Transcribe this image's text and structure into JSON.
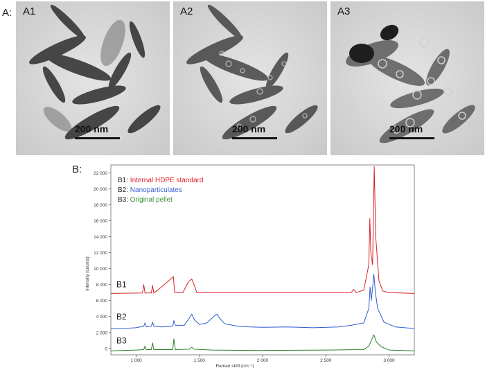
{
  "panel_a_label": "A:",
  "panel_b_label": "B:",
  "micrographs": [
    {
      "label": "A1",
      "scale": "200 nm"
    },
    {
      "label": "A2",
      "scale": "200 nm"
    },
    {
      "label": "A3",
      "scale": "200 nm"
    }
  ],
  "chart_data": {
    "type": "line",
    "xlabel": "Raman shift (cm⁻¹)",
    "ylabel": "Intensity (counts)",
    "xlim": [
      800,
      3200
    ],
    "ylim": [
      -800,
      23000
    ],
    "x_ticks": [
      1000,
      1500,
      2000,
      2500,
      3000
    ],
    "x_tick_labels": [
      "1 000",
      "1 500",
      "2 000",
      "2 500",
      "3 000"
    ],
    "y_ticks": [
      0,
      2000,
      4000,
      6000,
      8000,
      10000,
      12000,
      14000,
      16000,
      18000,
      20000,
      22000
    ],
    "y_tick_labels": [
      "0",
      "2 000",
      "4 000",
      "6 000",
      "8 000",
      "10 000",
      "12 000",
      "14 000",
      "16 000",
      "18 000",
      "20 000",
      "22 000"
    ],
    "grid": false,
    "legend_position": "top-left",
    "legend": [
      {
        "prefix": "B1:",
        "name": "Internal HDPE standard",
        "color": "#e0202a"
      },
      {
        "prefix": "B2:",
        "name": "Nanoparticulates",
        "color": "#3a5fd0"
      },
      {
        "prefix": "B3:",
        "name": "Original pellet",
        "color": "#3f8f3a"
      }
    ],
    "series": [
      {
        "name": "B1",
        "color": "#d71f26",
        "x": [
          800,
          1050,
          1060,
          1070,
          1120,
          1130,
          1140,
          1170,
          1295,
          1300,
          1305,
          1370,
          1415,
          1440,
          1460,
          1480,
          2000,
          2700,
          2720,
          2740,
          2800,
          2840,
          2848,
          2856,
          2870,
          2883,
          2895,
          2920,
          2950,
          3000,
          3200
        ],
        "y": [
          6900,
          6950,
          8000,
          6950,
          6950,
          7900,
          6950,
          7300,
          9000,
          7800,
          7000,
          7000,
          8400,
          8700,
          7900,
          7000,
          7000,
          7000,
          7400,
          7000,
          7300,
          10500,
          16300,
          12000,
          10500,
          22800,
          14000,
          8500,
          7200,
          7000,
          6900
        ]
      },
      {
        "name": "B2",
        "color": "#2f5bd1",
        "x": [
          800,
          900,
          1000,
          1060,
          1070,
          1080,
          1120,
          1130,
          1140,
          1200,
          1290,
          1298,
          1310,
          1380,
          1420,
          1440,
          1460,
          1500,
          1560,
          1620,
          1640,
          1660,
          1700,
          1800,
          1900,
          2000,
          2200,
          2400,
          2600,
          2700,
          2800,
          2840,
          2850,
          2860,
          2880,
          2892,
          2910,
          2960,
          3050,
          3200
        ],
        "y": [
          2450,
          2500,
          2600,
          2800,
          3200,
          2700,
          2800,
          3300,
          2800,
          2700,
          2800,
          3500,
          2900,
          2900,
          3800,
          4300,
          3600,
          3000,
          3200,
          4100,
          4300,
          3800,
          3100,
          2800,
          2700,
          2650,
          2700,
          2600,
          2700,
          2900,
          3200,
          5000,
          7700,
          6000,
          9300,
          7000,
          5000,
          3300,
          2700,
          2500
        ]
      },
      {
        "name": "B3",
        "color": "#2f7d2c",
        "x": [
          800,
          1000,
          1060,
          1070,
          1080,
          1120,
          1130,
          1140,
          1290,
          1298,
          1310,
          1420,
          1440,
          1460,
          1600,
          2000,
          2500,
          2800,
          2840,
          2860,
          2880,
          2900,
          2940,
          3000,
          3200
        ],
        "y": [
          -300,
          -200,
          -150,
          300,
          -150,
          -150,
          700,
          -150,
          -150,
          1200,
          -150,
          -100,
          150,
          -100,
          -200,
          -250,
          -200,
          -150,
          300,
          1000,
          1700,
          800,
          200,
          -200,
          -300
        ]
      }
    ],
    "annotations": [
      "B1",
      "B2",
      "B3"
    ]
  }
}
